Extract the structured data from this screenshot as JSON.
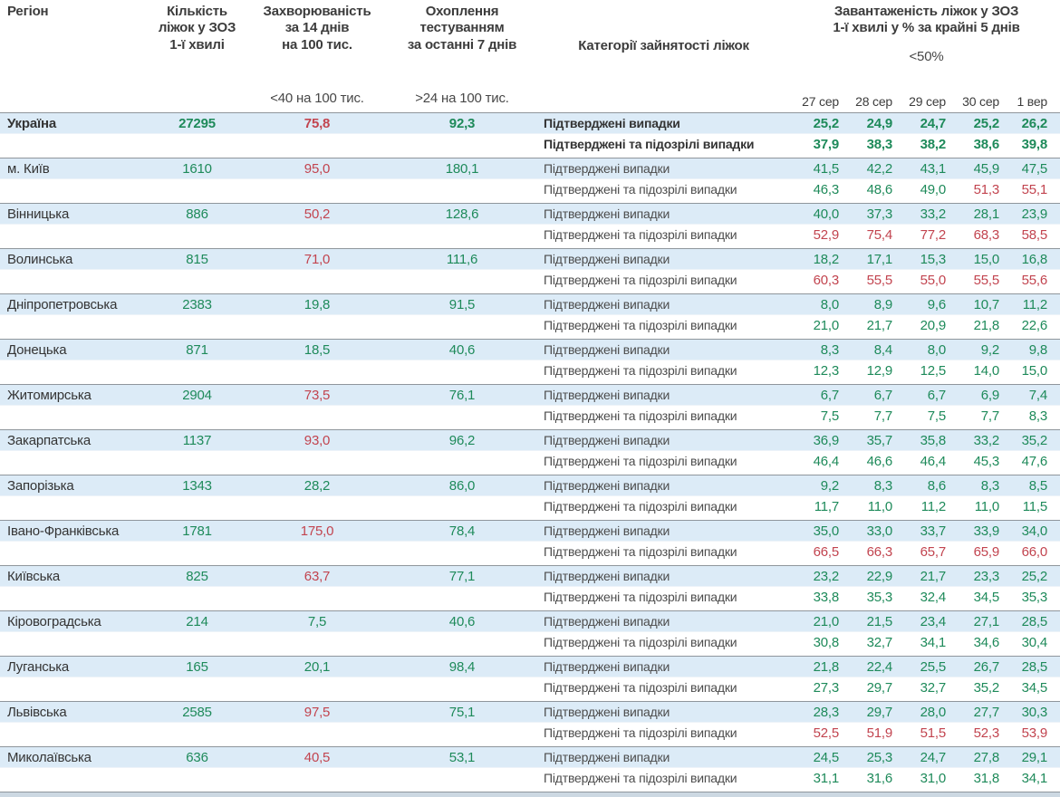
{
  "header": {
    "region": "Регіон",
    "beds_lines": [
      "Кількість",
      "ліжок у ЗОЗ",
      "1-ї хвилі"
    ],
    "incidence_lines": [
      "Захворюваність",
      "за 14 днів",
      "на 100 тис."
    ],
    "testing_lines": [
      "Охоплення",
      "тестуванням",
      "за останні 7 днів"
    ],
    "category": "Категорії зайнятості ліжок",
    "load_lines": [
      "Завантаженість ліжок у ЗОЗ",
      "1-ї хвилі у % за крайні 5 днів"
    ],
    "incidence_threshold": "<40 на 100 тис.",
    "testing_threshold": ">24 на 100 тис.",
    "load_threshold": "<50%",
    "dates": [
      "27 сер",
      "28 сер",
      "29 сер",
      "30 сер",
      "1 вер"
    ]
  },
  "row_labels": [
    "Підтверджені випадки",
    "Підтверджені та підозрілі випадки"
  ],
  "colors": {
    "green": "#1e8a5a",
    "red": "#c2444f",
    "row_highlight": "#dcebf7",
    "border_gray": "#8f969c"
  },
  "regions": [
    {
      "name": "Україна",
      "bold": true,
      "beds": "27295",
      "incidence": "75,8",
      "incidence_color": "r",
      "testing": "92,3",
      "confirmed": [
        "25,2",
        "24,9",
        "24,7",
        "25,2",
        "26,2"
      ],
      "confirmed_colors": "ggggg",
      "confirmed_suspected": [
        "37,9",
        "38,3",
        "38,2",
        "38,6",
        "39,8"
      ],
      "confirmed_suspected_colors": "ggggg"
    },
    {
      "name": "м. Київ",
      "bold": false,
      "beds": "1610",
      "incidence": "95,0",
      "incidence_color": "r",
      "testing": "180,1",
      "confirmed": [
        "41,5",
        "42,2",
        "43,1",
        "45,9",
        "47,5"
      ],
      "confirmed_colors": "ggggg",
      "confirmed_suspected": [
        "46,3",
        "48,6",
        "49,0",
        "51,3",
        "55,1"
      ],
      "confirmed_suspected_colors": "gggrr"
    },
    {
      "name": "Вінницька",
      "bold": false,
      "beds": "886",
      "incidence": "50,2",
      "incidence_color": "r",
      "testing": "128,6",
      "confirmed": [
        "40,0",
        "37,3",
        "33,2",
        "28,1",
        "23,9"
      ],
      "confirmed_colors": "ggggg",
      "confirmed_suspected": [
        "52,9",
        "75,4",
        "77,2",
        "68,3",
        "58,5"
      ],
      "confirmed_suspected_colors": "rrrrr"
    },
    {
      "name": "Волинська",
      "bold": false,
      "beds": "815",
      "incidence": "71,0",
      "incidence_color": "r",
      "testing": "111,6",
      "confirmed": [
        "18,2",
        "17,1",
        "15,3",
        "15,0",
        "16,8"
      ],
      "confirmed_colors": "ggggg",
      "confirmed_suspected": [
        "60,3",
        "55,5",
        "55,0",
        "55,5",
        "55,6"
      ],
      "confirmed_suspected_colors": "rrrrr"
    },
    {
      "name": "Дніпропетровська",
      "bold": false,
      "beds": "2383",
      "incidence": "19,8",
      "incidence_color": "g",
      "testing": "91,5",
      "confirmed": [
        "8,0",
        "8,9",
        "9,6",
        "10,7",
        "11,2"
      ],
      "confirmed_colors": "ggggg",
      "confirmed_suspected": [
        "21,0",
        "21,7",
        "20,9",
        "21,8",
        "22,6"
      ],
      "confirmed_suspected_colors": "ggggg"
    },
    {
      "name": "Донецька",
      "bold": false,
      "beds": "871",
      "incidence": "18,5",
      "incidence_color": "g",
      "testing": "40,6",
      "confirmed": [
        "8,3",
        "8,4",
        "8,0",
        "9,2",
        "9,8"
      ],
      "confirmed_colors": "ggggg",
      "confirmed_suspected": [
        "12,3",
        "12,9",
        "12,5",
        "14,0",
        "15,0"
      ],
      "confirmed_suspected_colors": "ggggg"
    },
    {
      "name": "Житомирська",
      "bold": false,
      "beds": "2904",
      "incidence": "73,5",
      "incidence_color": "r",
      "testing": "76,1",
      "confirmed": [
        "6,7",
        "6,7",
        "6,7",
        "6,9",
        "7,4"
      ],
      "confirmed_colors": "ggggg",
      "confirmed_suspected": [
        "7,5",
        "7,7",
        "7,5",
        "7,7",
        "8,3"
      ],
      "confirmed_suspected_colors": "ggggg"
    },
    {
      "name": "Закарпатська",
      "bold": false,
      "beds": "1137",
      "incidence": "93,0",
      "incidence_color": "r",
      "testing": "96,2",
      "confirmed": [
        "36,9",
        "35,7",
        "35,8",
        "33,2",
        "35,2"
      ],
      "confirmed_colors": "ggggg",
      "confirmed_suspected": [
        "46,4",
        "46,6",
        "46,4",
        "45,3",
        "47,6"
      ],
      "confirmed_suspected_colors": "ggggg"
    },
    {
      "name": "Запорізька",
      "bold": false,
      "beds": "1343",
      "incidence": "28,2",
      "incidence_color": "g",
      "testing": "86,0",
      "confirmed": [
        "9,2",
        "8,3",
        "8,6",
        "8,3",
        "8,5"
      ],
      "confirmed_colors": "ggggg",
      "confirmed_suspected": [
        "11,7",
        "11,0",
        "11,2",
        "11,0",
        "11,5"
      ],
      "confirmed_suspected_colors": "ggggg"
    },
    {
      "name": "Івано-Франківська",
      "bold": false,
      "beds": "1781",
      "incidence": "175,0",
      "incidence_color": "r",
      "testing": "78,4",
      "confirmed": [
        "35,0",
        "33,0",
        "33,7",
        "33,9",
        "34,0"
      ],
      "confirmed_colors": "ggggg",
      "confirmed_suspected": [
        "66,5",
        "66,3",
        "65,7",
        "65,9",
        "66,0"
      ],
      "confirmed_suspected_colors": "rrrrr"
    },
    {
      "name": "Київська",
      "bold": false,
      "beds": "825",
      "incidence": "63,7",
      "incidence_color": "r",
      "testing": "77,1",
      "confirmed": [
        "23,2",
        "22,9",
        "21,7",
        "23,3",
        "25,2"
      ],
      "confirmed_colors": "ggggg",
      "confirmed_suspected": [
        "33,8",
        "35,3",
        "32,4",
        "34,5",
        "35,3"
      ],
      "confirmed_suspected_colors": "ggggg"
    },
    {
      "name": "Кіровоградська",
      "bold": false,
      "beds": "214",
      "incidence": "7,5",
      "incidence_color": "g",
      "testing": "40,6",
      "confirmed": [
        "21,0",
        "21,5",
        "23,4",
        "27,1",
        "28,5"
      ],
      "confirmed_colors": "ggggg",
      "confirmed_suspected": [
        "30,8",
        "32,7",
        "34,1",
        "34,6",
        "30,4"
      ],
      "confirmed_suspected_colors": "ggggg"
    },
    {
      "name": "Луганська",
      "bold": false,
      "beds": "165",
      "incidence": "20,1",
      "incidence_color": "g",
      "testing": "98,4",
      "confirmed": [
        "21,8",
        "22,4",
        "25,5",
        "26,7",
        "28,5"
      ],
      "confirmed_colors": "ggggg",
      "confirmed_suspected": [
        "27,3",
        "29,7",
        "32,7",
        "35,2",
        "34,5"
      ],
      "confirmed_suspected_colors": "ggggg"
    },
    {
      "name": "Львівська",
      "bold": false,
      "beds": "2585",
      "incidence": "97,5",
      "incidence_color": "r",
      "testing": "75,1",
      "confirmed": [
        "28,3",
        "29,7",
        "28,0",
        "27,7",
        "30,3"
      ],
      "confirmed_colors": "ggggg",
      "confirmed_suspected": [
        "52,5",
        "51,9",
        "51,5",
        "52,3",
        "53,9"
      ],
      "confirmed_suspected_colors": "rrrrr"
    },
    {
      "name": "Миколаївська",
      "bold": false,
      "beds": "636",
      "incidence": "40,5",
      "incidence_color": "r",
      "testing": "53,1",
      "confirmed": [
        "24,5",
        "25,3",
        "24,7",
        "27,8",
        "29,1"
      ],
      "confirmed_colors": "ggggg",
      "confirmed_suspected": [
        "31,1",
        "31,6",
        "31,0",
        "31,8",
        "34,1"
      ],
      "confirmed_suspected_colors": "ggggg"
    }
  ]
}
